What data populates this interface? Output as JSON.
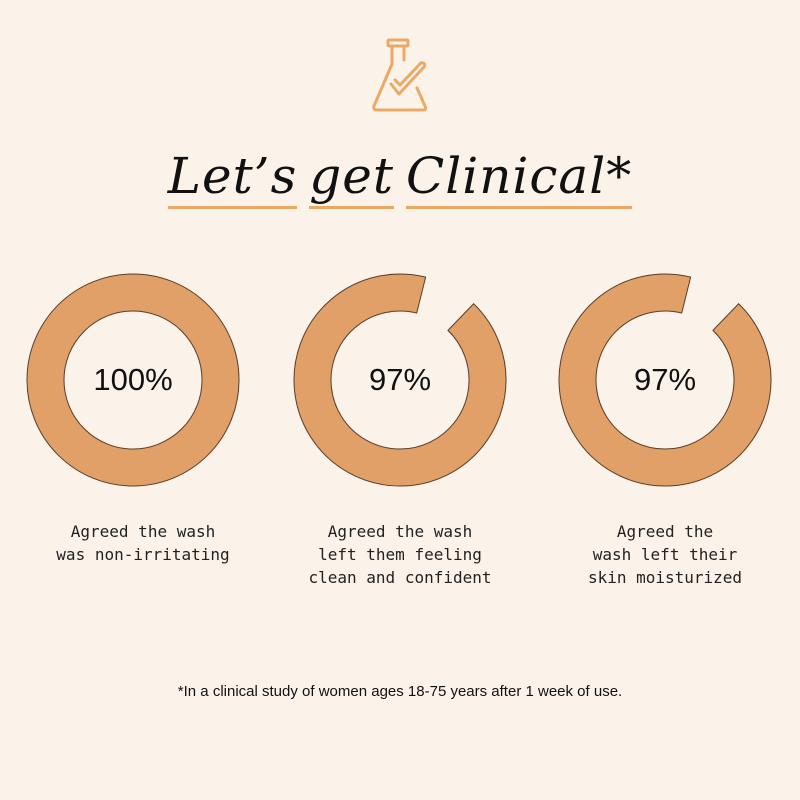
{
  "icon": "flask-check-icon",
  "title_words": [
    "Let’s",
    "get",
    "Clinical*"
  ],
  "stats": [
    {
      "value": 100,
      "label": "100%",
      "caption": "Agreed the wash\nwas non-irritating"
    },
    {
      "value": 97,
      "label": "97%",
      "caption": "Agreed the wash\nleft them feeling\nclean and confident"
    },
    {
      "value": 97,
      "label": "97%",
      "caption": "Agreed the\nwash left their\nskin moisturized"
    }
  ],
  "footnote": "*In a clinical study of women ages 18-75 years after 1 week of use.",
  "colors": {
    "background": "#fbf2ea",
    "accent": "#eba965",
    "ring": "#e0a068"
  }
}
